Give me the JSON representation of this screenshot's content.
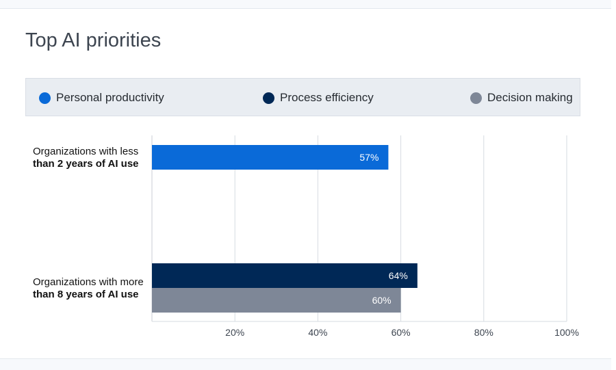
{
  "chart_data": {
    "type": "bar",
    "orientation": "horizontal",
    "title": "Top AI priorities",
    "legend": [
      {
        "name": "Personal productivity",
        "color": "#0a6ad8"
      },
      {
        "name": "Process efficiency",
        "color": "#002856"
      },
      {
        "name": "Decision making",
        "color": "#7e8797"
      }
    ],
    "categories": [
      {
        "line1": "Organizations with less",
        "line2": "than 2 years of AI use"
      },
      {
        "line1": "Organizations with more",
        "line2": "than 8 years of AI use"
      }
    ],
    "bars": [
      {
        "category": 0,
        "series": "Personal productivity",
        "value": 57,
        "label": "57%"
      },
      {
        "category": 1,
        "series": "Process efficiency",
        "value": 64,
        "label": "64%"
      },
      {
        "category": 1,
        "series": "Decision making",
        "value": 60,
        "label": "60%"
      }
    ],
    "xlim": [
      0,
      100
    ],
    "ticks": [
      {
        "value": 20,
        "label": "20%"
      },
      {
        "value": 40,
        "label": "40%"
      },
      {
        "value": 60,
        "label": "60%"
      },
      {
        "value": 80,
        "label": "80%"
      },
      {
        "value": 100,
        "label": "100%"
      }
    ],
    "grid": true,
    "legend_position": "top"
  }
}
